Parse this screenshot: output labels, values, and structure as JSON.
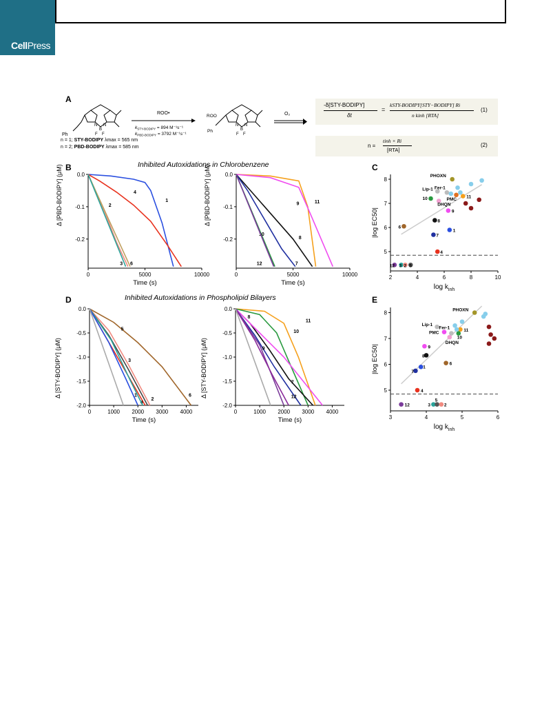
{
  "header": {
    "publisher": "CellPress",
    "publisher_bold": "Cell",
    "publisher_light": "Press"
  },
  "panelA": {
    "letter": "A",
    "reagent": "ROO•",
    "k_sty": "k",
    "k_sty_sub": "STY-BODIPY",
    "k_sty_val": " = 894 M⁻¹s⁻¹",
    "k_pbd": "k",
    "k_pbd_sub": "PBD-BODIPY",
    "k_pbd_val": " = 3792 M⁻¹s⁻¹",
    "oxidant": "O₂",
    "n1": "n = 1; STY-BODIPY λmax = 565 nm",
    "n1_prefix": "n = 1; ",
    "n1_name": "STY-BODIPY",
    "n1_suffix": " λmax = 565 nm",
    "n2_prefix": "n = 2; ",
    "n2_name": "PBD-BODIPY",
    "n2_suffix": " λmax = 585 nm",
    "eq1_num": "-δ[STY-BODIPY]",
    "eq1_den": "δt",
    "eq1_rhs_num": "kSTY-BODIPY[STY−BODIPY] Ri",
    "eq1_rhs_den": "n kinh [RTA]",
    "eq1_label": "(1)",
    "eq2_lhs": "n =",
    "eq2_num": "tinh × Ri",
    "eq2_den": "[RTA]",
    "eq2_label": "(2)"
  },
  "panelB": {
    "letter": "B",
    "title": "Inhibited Autoxidations in Chlorobenzene",
    "ylabel": "Δ [PBD-BODIPY] (μM)",
    "xlabel": "Time (s)",
    "yticks": [
      "0.0",
      "-0.1",
      "-0.2"
    ],
    "xticks": [
      "0",
      "5000",
      "10000"
    ]
  },
  "panelC": {
    "letter": "C",
    "ylabel": "|log EC50|",
    "xlabel": "log k",
    "xlabel_sub": "inh",
    "yticks": [
      "8",
      "7",
      "6",
      "5"
    ],
    "xticks": [
      "2",
      "4",
      "6",
      "8",
      "10"
    ],
    "labels": [
      "PHOXN",
      "Lip-1",
      "Fer-1",
      "10",
      "DHQN",
      "PMC",
      "11",
      "9",
      "6",
      "8",
      "1",
      "7",
      "4",
      "12",
      "3",
      "2",
      "5"
    ]
  },
  "panelD": {
    "letter": "D",
    "title": "Inhibited Autoxidations in Phospholipid Bilayers",
    "ylabel": "Δ [STY-BODIPY] (μM)",
    "xlabel": "Time (s)",
    "yticks": [
      "0.0",
      "-0.5",
      "-1.0",
      "-1.5",
      "-2.0"
    ],
    "xticks": [
      "0",
      "1000",
      "2000",
      "3000",
      "4000"
    ]
  },
  "panelE": {
    "letter": "E",
    "ylabel": "|log EC50|",
    "xlabel": "log k",
    "xlabel_sub": "inh",
    "yticks": [
      "8",
      "7",
      "6",
      "5"
    ],
    "xticks": [
      "3",
      "4",
      "5",
      "6"
    ],
    "labels": [
      "PHOXN",
      "Lip-1",
      "Fer-1",
      "PMC",
      "11",
      "10",
      "DHQN",
      "9",
      "8",
      "6",
      "1",
      "7",
      "4",
      "12",
      "3",
      "5",
      "2"
    ]
  },
  "chart_data": [
    {
      "type": "line",
      "panel": "B-left",
      "ylabel": "Δ [PBD-BODIPY] (μM)",
      "xlabel": "Time (s)",
      "xlim": [
        0,
        10000
      ],
      "ylim": [
        -0.29,
        0.0
      ],
      "series": [
        {
          "name": "1",
          "color": "#2a4fe0",
          "x": [
            0,
            2000,
            4000,
            5000,
            5500,
            6500,
            7500
          ],
          "y": [
            0,
            -0.005,
            -0.015,
            -0.025,
            -0.05,
            -0.15,
            -0.285
          ]
        },
        {
          "name": "4",
          "color": "#e8321e",
          "x": [
            0,
            1000,
            2500,
            4000,
            5500,
            7000,
            8200
          ],
          "y": [
            0,
            -0.02,
            -0.055,
            -0.095,
            -0.145,
            -0.22,
            -0.285
          ]
        },
        {
          "name": "2",
          "color": "#f08a80",
          "x": [
            0,
            500,
            1500,
            2500,
            3500
          ],
          "y": [
            0,
            -0.04,
            -0.12,
            -0.21,
            -0.285
          ]
        },
        {
          "name": "6",
          "color": "#c0a060",
          "x": [
            0,
            3700
          ],
          "y": [
            0,
            -0.285
          ]
        },
        {
          "name": "3",
          "color": "#2aa39a",
          "x": [
            0,
            3300
          ],
          "y": [
            0,
            -0.285
          ]
        }
      ]
    },
    {
      "type": "line",
      "panel": "B-right",
      "ylabel": "Δ [PBD-BODIPY] (μM)",
      "xlabel": "Time (s)",
      "xlim": [
        0,
        10000
      ],
      "ylim": [
        -0.29,
        0.0
      ],
      "series": [
        {
          "name": "11",
          "color": "#f5a01c",
          "x": [
            0,
            3000,
            5500,
            6300,
            7000
          ],
          "y": [
            0,
            -0.005,
            -0.02,
            -0.1,
            -0.285
          ]
        },
        {
          "name": "9",
          "color": "#f04cf0",
          "x": [
            0,
            3000,
            5500,
            6500,
            8500
          ],
          "y": [
            0,
            -0.01,
            -0.04,
            -0.12,
            -0.285
          ]
        },
        {
          "name": "8",
          "color": "#111111",
          "x": [
            0,
            1500,
            3500,
            5000,
            6700
          ],
          "y": [
            0,
            -0.06,
            -0.14,
            -0.2,
            -0.285
          ]
        },
        {
          "name": "7",
          "color": "#2030a0",
          "x": [
            0,
            1000,
            2500,
            4000,
            5200
          ],
          "y": [
            0,
            -0.05,
            -0.14,
            -0.23,
            -0.285
          ]
        },
        {
          "name": "10",
          "color": "#2a9a40",
          "x": [
            0,
            3400
          ],
          "y": [
            0,
            -0.285
          ]
        },
        {
          "name": "12",
          "color": "#7a3a9a",
          "x": [
            0,
            3300
          ],
          "y": [
            0,
            -0.285
          ]
        }
      ]
    },
    {
      "type": "scatter",
      "panel": "C",
      "ylabel": "|log EC50|",
      "xlabel": "log kinh",
      "xlim": [
        2,
        10
      ],
      "ylim": [
        4.2,
        8.2
      ],
      "threshold": 4.85,
      "points": [
        {
          "label": "PHOXN",
          "color": "#a39528",
          "x": 6.6,
          "y": 8.0
        },
        {
          "label": "Lip-1",
          "color": "#bcbcbc",
          "x": 5.5,
          "y": 7.5
        },
        {
          "label": "Fer-1",
          "color": "#bcbcbc",
          "x": 6.2,
          "y": 7.45
        },
        {
          "label": "10",
          "color": "#2a9a40",
          "x": 5.0,
          "y": 7.2
        },
        {
          "label": "DHQN",
          "color": "#f0a0d0",
          "x": 5.6,
          "y": 7.1
        },
        {
          "label": "PMC",
          "color": "#e07020",
          "x": 6.9,
          "y": 7.35
        },
        {
          "label": "11",
          "color": "#f5a01c",
          "x": 7.4,
          "y": 7.3
        },
        {
          "label": "9",
          "color": "#f04cf0",
          "x": 6.3,
          "y": 6.7
        },
        {
          "label": "6",
          "color": "#a0662a",
          "x": 3.0,
          "y": 6.05
        },
        {
          "label": "8",
          "color": "#111111",
          "x": 5.3,
          "y": 6.3
        },
        {
          "label": "1",
          "color": "#2a4fe0",
          "x": 6.4,
          "y": 5.9
        },
        {
          "label": "7",
          "color": "#2030a0",
          "x": 5.2,
          "y": 5.7
        },
        {
          "label": "4",
          "color": "#e8321e",
          "x": 5.5,
          "y": 5.0
        },
        {
          "label": "12",
          "color": "#7a3a9a",
          "x": 2.3,
          "y": 4.45
        },
        {
          "label": "3",
          "color": "#2aa39a",
          "x": 2.8,
          "y": 4.45
        },
        {
          "label": "2",
          "color": "#f08a80",
          "x": 3.1,
          "y": 4.45
        },
        {
          "label": "5",
          "color": "#555555",
          "x": 3.5,
          "y": 4.45
        },
        {
          "label": "",
          "color": "#87ceeb",
          "x": 7.0,
          "y": 7.65
        },
        {
          "label": "",
          "color": "#87ceeb",
          "x": 8.0,
          "y": 7.8
        },
        {
          "label": "",
          "color": "#87ceeb",
          "x": 8.8,
          "y": 7.95
        },
        {
          "label": "",
          "color": "#87ceeb",
          "x": 7.2,
          "y": 7.45
        },
        {
          "label": "",
          "color": "#87ceeb",
          "x": 6.5,
          "y": 7.4
        },
        {
          "label": "",
          "color": "#8b1a1a",
          "x": 7.6,
          "y": 7.0
        },
        {
          "label": "",
          "color": "#8b1a1a",
          "x": 8.0,
          "y": 6.8
        },
        {
          "label": "",
          "color": "#8b1a1a",
          "x": 8.6,
          "y": 7.15
        }
      ]
    },
    {
      "type": "line",
      "panel": "D-left",
      "ylabel": "Δ [STY-BODIPY] (μM)",
      "xlabel": "Time (s)",
      "xlim": [
        0,
        4500
      ],
      "ylim": [
        -2.0,
        0.0
      ],
      "series": [
        {
          "name": "6",
          "color": "#a0662a",
          "x": [
            0,
            1000,
            2000,
            3000,
            4200
          ],
          "y": [
            0,
            -0.28,
            -0.7,
            -1.2,
            -2.0
          ]
        },
        {
          "name": "2",
          "color": "#f08a80",
          "x": [
            0,
            800,
            1600,
            2500
          ],
          "y": [
            0,
            -0.45,
            -1.15,
            -2.0
          ]
        },
        {
          "name": "5",
          "color": "#444444",
          "x": [
            0,
            800,
            1600,
            2400
          ],
          "y": [
            0,
            -0.55,
            -1.25,
            -2.0
          ]
        },
        {
          "name": "4",
          "color": "#e8321e",
          "x": [
            0,
            2300
          ],
          "y": [
            0,
            -2.0
          ]
        },
        {
          "name": "3",
          "color": "#2aa39a",
          "x": [
            0,
            900,
            1700,
            2200
          ],
          "y": [
            0,
            -0.65,
            -1.5,
            -2.0
          ]
        },
        {
          "name": "1",
          "color": "#2a4fe0",
          "x": [
            0,
            800,
            1500,
            2000
          ],
          "y": [
            0,
            -0.7,
            -1.45,
            -2.0
          ]
        },
        {
          "name": "",
          "color": "#aaaaaa",
          "x": [
            0,
            1400
          ],
          "y": [
            0,
            -2.0
          ]
        }
      ]
    },
    {
      "type": "line",
      "panel": "D-right",
      "ylabel": "Δ [STY-BODIPY] (μM)",
      "xlabel": "Time (s)",
      "xlim": [
        0,
        4500
      ],
      "ylim": [
        -2.0,
        0.0
      ],
      "series": [
        {
          "name": "11",
          "color": "#f5a01c",
          "x": [
            0,
            1200,
            2000,
            2600,
            3300
          ],
          "y": [
            0,
            -0.05,
            -0.3,
            -1.0,
            -2.0
          ]
        },
        {
          "name": "10",
          "color": "#2a9a40",
          "x": [
            0,
            1000,
            1700,
            2300,
            3000
          ],
          "y": [
            0,
            -0.12,
            -0.5,
            -1.2,
            -2.0
          ]
        },
        {
          "name": "8",
          "color": "#111111",
          "x": [
            0,
            600,
            1400,
            2200,
            3200
          ],
          "y": [
            0,
            -0.3,
            -0.85,
            -1.45,
            -2.0
          ]
        },
        {
          "name": "",
          "color": "#f04cf0",
          "x": [
            0,
            1000,
            2000,
            3600
          ],
          "y": [
            0,
            -0.5,
            -1.0,
            -2.0
          ]
        },
        {
          "name": "9",
          "color": "#2030a0",
          "x": [
            0,
            800,
            1600,
            2700
          ],
          "y": [
            0,
            -0.55,
            -1.2,
            -2.0
          ]
        },
        {
          "name": "7",
          "color": "#7a3a9a",
          "x": [
            0,
            1000,
            2000
          ],
          "y": [
            0,
            -0.75,
            -2.0
          ]
        },
        {
          "name": "12",
          "color": "#8a2a9a",
          "x": [
            0,
            800,
            1500,
            2200
          ],
          "y": [
            0,
            -0.65,
            -1.35,
            -2.0
          ]
        },
        {
          "name": "",
          "color": "#aaaaaa",
          "x": [
            0,
            1450
          ],
          "y": [
            0,
            -2.0
          ]
        }
      ]
    },
    {
      "type": "scatter",
      "panel": "E",
      "ylabel": "|log EC50|",
      "xlabel": "log kinh",
      "xlim": [
        3,
        6
      ],
      "ylim": [
        4.2,
        8.2
      ],
      "threshold": 4.85,
      "points": [
        {
          "label": "PHOXN",
          "color": "#a39528",
          "x": 5.35,
          "y": 8.0
        },
        {
          "label": "Lip-1",
          "color": "#bcbcbc",
          "x": 4.3,
          "y": 7.45
        },
        {
          "label": "Fer-1",
          "color": "#bcbcbc",
          "x": 4.7,
          "y": 7.2
        },
        {
          "label": "PMC",
          "color": "#f04cf0",
          "x": 4.5,
          "y": 7.25
        },
        {
          "label": "11",
          "color": "#f5a01c",
          "x": 4.95,
          "y": 7.35
        },
        {
          "label": "10",
          "color": "#2a9a40",
          "x": 4.9,
          "y": 7.2
        },
        {
          "label": "DHQN",
          "color": "#f0a0d0",
          "x": 4.65,
          "y": 7.05
        },
        {
          "label": "9",
          "color": "#f04cf0",
          "x": 3.95,
          "y": 6.7
        },
        {
          "label": "8",
          "color": "#111111",
          "x": 4.0,
          "y": 6.35
        },
        {
          "label": "6",
          "color": "#a0662a",
          "x": 4.55,
          "y": 6.05
        },
        {
          "label": "1",
          "color": "#2a4fe0",
          "x": 3.85,
          "y": 5.9
        },
        {
          "label": "7",
          "color": "#2030a0",
          "x": 3.7,
          "y": 5.75
        },
        {
          "label": "4",
          "color": "#e8321e",
          "x": 3.75,
          "y": 5.0
        },
        {
          "label": "12",
          "color": "#7a3a9a",
          "x": 3.3,
          "y": 4.45
        },
        {
          "label": "3",
          "color": "#2aa39a",
          "x": 4.2,
          "y": 4.45
        },
        {
          "label": "5",
          "color": "#555555",
          "x": 4.3,
          "y": 4.45
        },
        {
          "label": "2",
          "color": "#f08a80",
          "x": 4.42,
          "y": 4.45
        },
        {
          "label": "",
          "color": "#87ceeb",
          "x": 4.8,
          "y": 7.5
        },
        {
          "label": "",
          "color": "#87ceeb",
          "x": 5.0,
          "y": 7.65
        },
        {
          "label": "",
          "color": "#87ceeb",
          "x": 5.6,
          "y": 7.85
        },
        {
          "label": "",
          "color": "#87ceeb",
          "x": 5.65,
          "y": 7.95
        },
        {
          "label": "",
          "color": "#87ceeb",
          "x": 4.85,
          "y": 7.35
        },
        {
          "label": "",
          "color": "#8b1a1a",
          "x": 5.75,
          "y": 7.45
        },
        {
          "label": "",
          "color": "#8b1a1a",
          "x": 5.8,
          "y": 7.15
        },
        {
          "label": "",
          "color": "#8b1a1a",
          "x": 5.9,
          "y": 7.0
        },
        {
          "label": "",
          "color": "#8b1a1a",
          "x": 5.75,
          "y": 6.8
        }
      ]
    }
  ]
}
